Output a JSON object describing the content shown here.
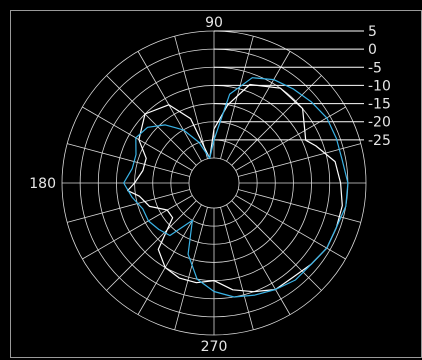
{
  "chart_data": {
    "type": "polar-line",
    "title": "",
    "angle_labels": [
      "90",
      "180",
      "270"
    ],
    "angle_label_degrees": [
      90,
      180,
      270
    ],
    "radial_ticks": [
      5,
      0,
      -5,
      -10,
      -15,
      -20,
      -25
    ],
    "radial_range": [
      -30,
      5
    ],
    "spoke_step_degrees": 15,
    "grid": true,
    "series": [
      {
        "color": "#ffffff",
        "points": [
          [
            0,
            -2
          ],
          [
            10,
            -3
          ],
          [
            20,
            -7
          ],
          [
            25,
            -9
          ],
          [
            30,
            -8
          ],
          [
            40,
            -5
          ],
          [
            55,
            -5
          ],
          [
            70,
            -8
          ],
          [
            80,
            -15
          ],
          [
            90,
            -22
          ],
          [
            100,
            -30
          ],
          [
            110,
            -18
          ],
          [
            120,
            -12
          ],
          [
            135,
            -10
          ],
          [
            150,
            -13
          ],
          [
            160,
            -17
          ],
          [
            170,
            -17
          ],
          [
            180,
            -15
          ],
          [
            185,
            -13
          ],
          [
            190,
            -16
          ],
          [
            200,
            -18
          ],
          [
            210,
            -22
          ],
          [
            220,
            -22
          ],
          [
            230,
            -13
          ],
          [
            240,
            -10
          ],
          [
            250,
            -9
          ],
          [
            260,
            -9
          ],
          [
            270,
            -10
          ],
          [
            280,
            -7
          ],
          [
            290,
            -5
          ],
          [
            300,
            -3
          ],
          [
            310,
            -3
          ],
          [
            320,
            -2
          ],
          [
            330,
            -1
          ],
          [
            340,
            -1
          ],
          [
            350,
            -1
          ],
          [
            360,
            -2
          ]
        ]
      },
      {
        "color": "#3ab3e6",
        "points": [
          [
            0,
            0
          ],
          [
            10,
            -1
          ],
          [
            20,
            -1
          ],
          [
            30,
            -1
          ],
          [
            40,
            -2
          ],
          [
            50,
            -3
          ],
          [
            60,
            -4
          ],
          [
            70,
            -6
          ],
          [
            80,
            -12
          ],
          [
            90,
            -25
          ],
          [
            100,
            -30
          ],
          [
            110,
            -25
          ],
          [
            120,
            -20
          ],
          [
            130,
            -16
          ],
          [
            140,
            -13
          ],
          [
            150,
            -12
          ],
          [
            160,
            -14
          ],
          [
            170,
            -14
          ],
          [
            180,
            -12
          ],
          [
            190,
            -14
          ],
          [
            200,
            -16
          ],
          [
            210,
            -16
          ],
          [
            220,
            -17
          ],
          [
            230,
            -18
          ],
          [
            240,
            -25
          ],
          [
            250,
            -16
          ],
          [
            260,
            -10
          ],
          [
            270,
            -7
          ],
          [
            280,
            -5
          ],
          [
            290,
            -4
          ],
          [
            300,
            -3
          ],
          [
            310,
            -2
          ],
          [
            320,
            -2
          ],
          [
            330,
            -1
          ],
          [
            340,
            -1
          ],
          [
            350,
            0
          ],
          [
            360,
            0
          ]
        ]
      }
    ]
  }
}
